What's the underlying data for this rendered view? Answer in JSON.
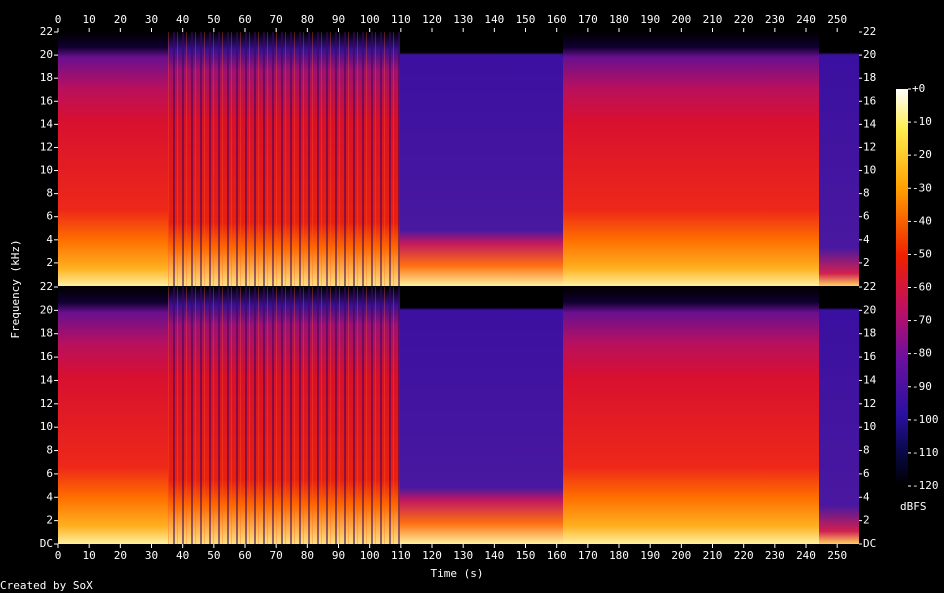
{
  "chart_data": {
    "type": "spectrogram",
    "x_label": "Time (s)",
    "y_label": "Frequency (kHz)",
    "xlim": [
      0,
      257
    ],
    "xticks": [
      0,
      10,
      20,
      30,
      40,
      50,
      60,
      70,
      80,
      90,
      100,
      110,
      120,
      130,
      140,
      150,
      160,
      170,
      180,
      190,
      200,
      210,
      220,
      230,
      240,
      250
    ],
    "ylim": [
      0,
      22
    ],
    "yticks": [
      {
        "value": 0,
        "label": "DC"
      },
      2,
      4,
      6,
      8,
      10,
      12,
      14,
      16,
      18,
      20,
      22
    ],
    "colorbar": {
      "label": "dBFS",
      "lim": [
        -120,
        0
      ],
      "ticks": [
        {
          "value": 0,
          "label": "+0"
        },
        -10,
        -20,
        -30,
        -40,
        -50,
        -60,
        -70,
        -80,
        -90,
        -100,
        -110,
        -120
      ]
    },
    "footer": "Created by SoX"
  }
}
